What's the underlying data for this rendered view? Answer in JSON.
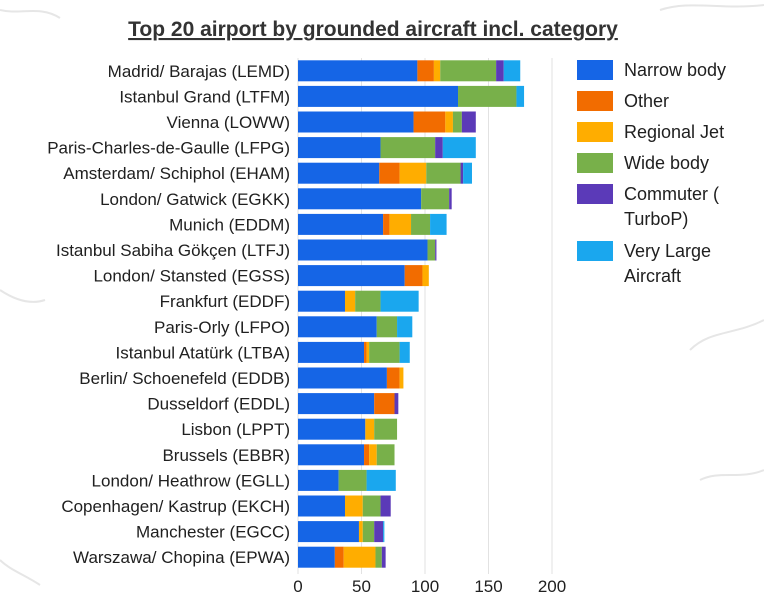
{
  "chart_data": {
    "type": "bar",
    "orientation": "horizontal",
    "stacked": true,
    "title": "Top 20 airport by grounded aircraft incl. category",
    "xlabel": "",
    "ylabel": "",
    "xlim": [
      0,
      200
    ],
    "xticks": [
      0,
      50,
      100,
      150,
      200
    ],
    "grid": true,
    "legend_position": "right",
    "categories": [
      "Madrid/ Barajas (LEMD)",
      "Istanbul Grand (LTFM)",
      "Vienna (LOWW)",
      "Paris-Charles-de-Gaulle (LFPG)",
      "Amsterdam/ Schiphol (EHAM)",
      "London/ Gatwick (EGKK)",
      "Munich (EDDM)",
      "Istanbul Sabiha Gökçen (LTFJ)",
      "London/ Stansted (EGSS)",
      "Frankfurt (EDDF)",
      "Paris-Orly (LFPO)",
      "Istanbul Atatürk (LTBA)",
      "Berlin/ Schoenefeld (EDDB)",
      "Dusseldorf (EDDL)",
      "Lisbon (LPPT)",
      "Brussels (EBBR)",
      "London/ Heathrow (EGLL)",
      "Copenhagen/ Kastrup (EKCH)",
      "Manchester (EGCC)",
      "Warszawa/ Chopina (EPWA)"
    ],
    "series": [
      {
        "name": "Narrow body",
        "color": "#1565e6",
        "values": [
          94,
          126,
          91,
          65,
          64,
          97,
          67,
          102,
          84,
          37,
          62,
          52,
          70,
          60,
          53,
          52,
          32,
          37,
          48,
          29
        ]
      },
      {
        "name": "Other",
        "color": "#f26c00",
        "values": [
          13,
          0,
          25,
          0,
          16,
          0,
          5,
          0,
          14,
          0,
          0,
          2,
          10,
          16,
          0,
          4,
          0,
          0,
          0,
          7
        ]
      },
      {
        "name": "Regional Jet",
        "color": "#ffad00",
        "values": [
          5,
          0,
          6,
          0,
          21,
          0,
          17,
          0,
          5,
          8,
          0,
          2,
          3,
          0,
          7,
          6,
          0,
          14,
          3,
          25
        ]
      },
      {
        "name": "Wide body",
        "color": "#78b04a",
        "values": [
          44,
          46,
          7,
          43,
          27,
          22,
          15,
          6,
          0,
          20,
          16,
          24,
          0,
          0,
          18,
          14,
          22,
          14,
          9,
          5
        ]
      },
      {
        "name": "Commuter ( TurboP)",
        "color": "#5b3ab8",
        "values": [
          6,
          0,
          11,
          6,
          2,
          2,
          0,
          1,
          0,
          0,
          0,
          0,
          0,
          3,
          0,
          0,
          0,
          8,
          7,
          3
        ]
      },
      {
        "name": "Very Large Aircraft",
        "color": "#1aa7ee",
        "values": [
          13,
          6,
          0,
          26,
          7,
          0,
          13,
          0,
          0,
          30,
          12,
          8,
          0,
          0,
          0,
          0,
          23,
          0,
          1,
          0
        ]
      }
    ]
  },
  "legend": {
    "items": [
      {
        "lines": [
          "Narrow body"
        ],
        "color": "#1565e6"
      },
      {
        "lines": [
          "Other"
        ],
        "color": "#f26c00"
      },
      {
        "lines": [
          "Regional Jet"
        ],
        "color": "#ffad00"
      },
      {
        "lines": [
          "Wide body"
        ],
        "color": "#78b04a"
      },
      {
        "lines": [
          "Commuter (",
          "TurboP)"
        ],
        "color": "#5b3ab8"
      },
      {
        "lines": [
          "Very Large",
          "Aircraft"
        ],
        "color": "#1aa7ee"
      }
    ]
  }
}
